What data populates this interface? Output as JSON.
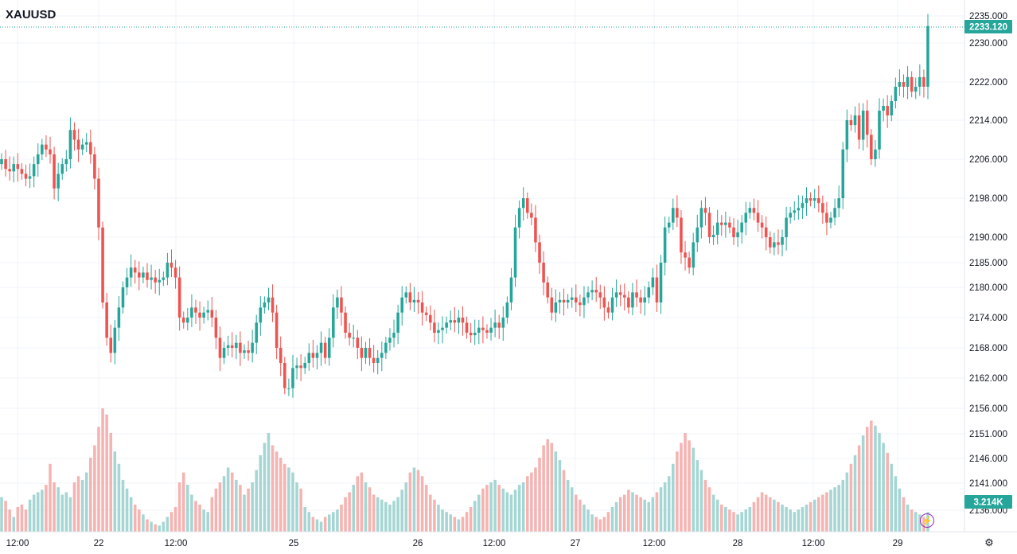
{
  "symbol": "XAUUSD",
  "colors": {
    "up": "#26a69a",
    "down": "#ef5350",
    "up_vol": "#a5d6d3",
    "down_vol": "#f5b3b1",
    "grid": "#f0f3fa",
    "text": "#131722"
  },
  "last_price_label": "2233.120",
  "volume_label": "3.214K",
  "icons": {
    "lightning": "lightning-icon",
    "settings": "settings-icon"
  },
  "chart_data": {
    "type": "candlestick",
    "title": "XAUUSD",
    "y_ticks": [
      "2235.000",
      "2230.000",
      "2222.000",
      "2214.000",
      "2206.000",
      "2198.000",
      "2190.000",
      "2185.000",
      "2180.000",
      "2174.000",
      "2168.000",
      "2162.000",
      "2156.000",
      "2151.000",
      "2146.000",
      "2141.000",
      "2136.000"
    ],
    "x_ticks": [
      "12:00",
      "22",
      "12:00",
      "25",
      "26",
      "12:00",
      "27",
      "12:00",
      "28",
      "12:00",
      "29"
    ],
    "ylim": [
      2136,
      2236
    ],
    "last_price": 2233.12,
    "last_volume": "3.214K",
    "series": [
      {
        "kind": "price",
        "close": [
          2206,
          2204,
          2203.5,
          2205,
          2204,
          2203,
          2202,
          2202.5,
          2205,
          2207,
          2209,
          2208,
          2207,
          2200,
          2203,
          2205,
          2206,
          2212,
          2210,
          2208,
          2209,
          2209.5,
          2207,
          2202,
          2192,
          2177,
          2170,
          2167,
          2172,
          2176,
          2180,
          2182,
          2184,
          2183,
          2182,
          2183,
          2181.5,
          2182,
          2181,
          2181.5,
          2182,
          2185,
          2184,
          2182,
          2174,
          2173,
          2174,
          2176,
          2175,
          2174,
          2175,
          2175.5,
          2174,
          2170,
          2166,
          2168,
          2168.5,
          2168,
          2169,
          2167,
          2167.5,
          2167,
          2169,
          2173,
          2176,
          2177,
          2178,
          2175,
          2168,
          2165,
          2160,
          2160,
          2164,
          2164.5,
          2164,
          2165,
          2167,
          2166,
          2167,
          2169,
          2166,
          2170,
          2176,
          2178,
          2175,
          2171,
          2170,
          2170,
          2168,
          2166,
          2168,
          2166,
          2165,
          2166,
          2167,
          2169,
          2170,
          2171,
          2175,
          2178,
          2179,
          2177,
          2177.5,
          2177,
          2175,
          2174.5,
          2173,
          2171,
          2171.5,
          2172,
          2173,
          2173.5,
          2173,
          2174,
          2173,
          2171,
          2170.5,
          2171,
          2172,
          2171.5,
          2171,
          2172,
          2173,
          2172,
          2174,
          2177,
          2182,
          2192,
          2196,
          2198,
          2195,
          2194,
          2189,
          2185,
          2181,
          2178,
          2175,
          2177,
          2177.5,
          2177,
          2177.5,
          2178,
          2177,
          2176.5,
          2178,
          2179,
          2179.5,
          2179,
          2178,
          2176,
          2175,
          2178,
          2179,
          2178.5,
          2178,
          2176,
          2179,
          2178,
          2177,
          2178,
          2180,
          2182,
          2177,
          2185,
          2192,
          2193,
          2196,
          2194,
          2187,
          2186,
          2184,
          2189,
          2192,
          2196,
          2195,
          2190,
          2190.5,
          2193,
          2192.5,
          2193,
          2192,
          2190,
          2191,
          2193,
          2195,
          2196,
          2195,
          2193,
          2192,
          2190,
          2188,
          2189,
          2188.5,
          2190,
          2194,
          2195,
          2195.5,
          2196,
          2197,
          2198,
          2197.5,
          2198,
          2197,
          2195,
          2193,
          2194,
          2196,
          2198,
          2208,
          2214,
          2213,
          2215,
          2210,
          2216,
          2211,
          2206,
          2208,
          2216,
          2217,
          2215,
          2218,
          2221,
          2222,
          2221,
          2223,
          2220,
          2221,
          2223,
          2221,
          2233.12
        ],
        "open": [
          2205,
          2206,
          2204,
          2203.5,
          2205,
          2204,
          2203,
          2202,
          2202.5,
          2205,
          2207,
          2209,
          2208,
          2207,
          2200,
          2203,
          2205,
          2206,
          2212,
          2210,
          2208,
          2209,
          2209.5,
          2207,
          2202,
          2192,
          2177,
          2170,
          2167,
          2172,
          2176,
          2180,
          2182,
          2184,
          2183,
          2182,
          2183,
          2181.5,
          2182,
          2181,
          2181.5,
          2182,
          2185,
          2184,
          2182,
          2174,
          2173,
          2174,
          2176,
          2175,
          2174,
          2175,
          2175.5,
          2174,
          2170,
          2166,
          2168,
          2168.5,
          2168,
          2169,
          2167,
          2167.5,
          2167,
          2169,
          2173,
          2176,
          2177,
          2178,
          2175,
          2168,
          2165,
          2160,
          2160,
          2164,
          2164.5,
          2164,
          2165,
          2167,
          2166,
          2167,
          2169,
          2166,
          2170,
          2176,
          2178,
          2175,
          2171,
          2170,
          2170,
          2168,
          2166,
          2168,
          2166,
          2165,
          2166,
          2167,
          2169,
          2170,
          2171,
          2175,
          2178,
          2179,
          2177,
          2177.5,
          2177,
          2175,
          2174.5,
          2173,
          2171,
          2171.5,
          2172,
          2173,
          2173.5,
          2173,
          2174,
          2173,
          2171,
          2170.5,
          2171,
          2172,
          2171.5,
          2171,
          2172,
          2173,
          2172,
          2174,
          2177,
          2182,
          2192,
          2196,
          2198,
          2195,
          2194,
          2189,
          2185,
          2181,
          2178,
          2175,
          2177,
          2177.5,
          2177,
          2177.5,
          2178,
          2177,
          2176.5,
          2178,
          2179,
          2179.5,
          2179,
          2178,
          2176,
          2175,
          2178,
          2179,
          2178.5,
          2178,
          2176,
          2179,
          2178,
          2177,
          2178,
          2180,
          2182,
          2177,
          2185,
          2192,
          2193,
          2196,
          2194,
          2187,
          2186,
          2184,
          2189,
          2192,
          2196,
          2195,
          2190,
          2190.5,
          2193,
          2192.5,
          2193,
          2192,
          2190,
          2191,
          2193,
          2195,
          2196,
          2195,
          2193,
          2192,
          2190,
          2188,
          2189,
          2188.5,
          2190,
          2194,
          2195,
          2195.5,
          2196,
          2197,
          2198,
          2197.5,
          2198,
          2197,
          2195,
          2193,
          2194,
          2196,
          2198,
          2208,
          2214,
          2213,
          2215,
          2210,
          2216,
          2211,
          2206,
          2208,
          2216,
          2217,
          2215,
          2218,
          2221,
          2222,
          2221,
          2223,
          2220,
          2221,
          2223,
          2221
        ]
      },
      {
        "kind": "volume",
        "values": [
          28,
          25,
          18,
          12,
          20,
          22,
          18,
          26,
          30,
          32,
          34,
          38,
          55,
          40,
          36,
          30,
          32,
          28,
          40,
          45,
          42,
          48,
          60,
          70,
          85,
          100,
          95,
          80,
          65,
          55,
          42,
          35,
          28,
          22,
          18,
          14,
          10,
          8,
          6,
          5,
          8,
          12,
          16,
          20,
          40,
          48,
          38,
          30,
          25,
          22,
          18,
          16,
          28,
          35,
          40,
          45,
          52,
          48,
          42,
          38,
          30,
          35,
          40,
          50,
          62,
          72,
          80,
          70,
          65,
          60,
          55,
          52,
          48,
          40,
          35,
          20,
          16,
          12,
          10,
          8,
          12,
          14,
          16,
          18,
          22,
          28,
          32,
          38,
          45,
          48,
          40,
          36,
          30,
          28,
          26,
          24,
          22,
          25,
          28,
          34,
          40,
          48,
          52,
          50,
          45,
          38,
          30,
          26,
          22,
          18,
          16,
          14,
          12,
          10,
          12,
          16,
          20,
          25,
          30,
          35,
          38,
          40,
          42,
          38,
          35,
          32,
          30,
          34,
          38,
          40,
          45,
          48,
          52,
          60,
          70,
          75,
          72,
          65,
          58,
          50,
          42,
          36,
          30,
          26,
          22,
          18,
          14,
          12,
          10,
          12,
          16,
          20,
          24,
          28,
          30,
          34,
          32,
          30,
          28,
          26,
          24,
          28,
          32,
          36,
          40,
          45,
          55,
          65,
          72,
          80,
          74,
          68,
          58,
          50,
          42,
          36,
          30,
          26,
          22,
          20,
          18,
          16,
          14,
          16,
          18,
          20,
          24,
          28,
          32,
          30,
          28,
          26,
          24,
          22,
          20,
          18,
          16,
          18,
          20,
          22,
          24,
          26,
          28,
          30,
          32,
          34,
          36,
          38,
          42,
          48,
          55,
          62,
          70,
          78,
          85,
          90,
          86,
          80,
          72,
          64,
          55,
          45,
          35,
          28,
          22,
          18,
          16,
          14,
          12,
          16
        ]
      }
    ]
  }
}
